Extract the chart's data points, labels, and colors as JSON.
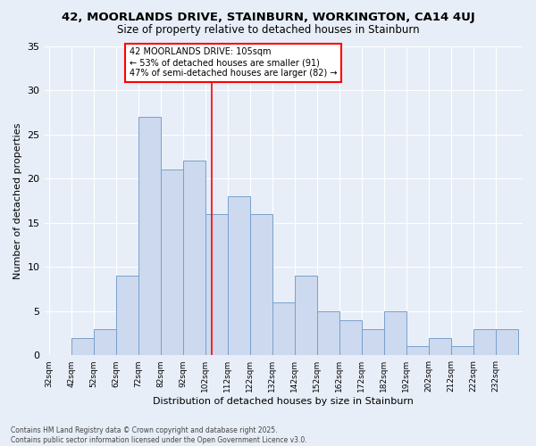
{
  "title": "42, MOORLANDS DRIVE, STAINBURN, WORKINGTON, CA14 4UJ",
  "subtitle": "Size of property relative to detached houses in Stainburn",
  "xlabel": "Distribution of detached houses by size in Stainburn",
  "ylabel": "Number of detached properties",
  "footer_line1": "Contains HM Land Registry data © Crown copyright and database right 2025.",
  "footer_line2": "Contains public sector information licensed under the Open Government Licence v3.0.",
  "annotation_title": "42 MOORLANDS DRIVE: 105sqm",
  "annotation_line2": "← 53% of detached houses are smaller (91)",
  "annotation_line3": "47% of semi-detached houses are larger (82) →",
  "bins_left": [
    32,
    42,
    52,
    62,
    72,
    82,
    92,
    102,
    112,
    122,
    132,
    142,
    152,
    162,
    172,
    182,
    192,
    202,
    212,
    222,
    232
  ],
  "counts": [
    0,
    2,
    3,
    9,
    27,
    21,
    22,
    16,
    18,
    16,
    6,
    9,
    5,
    4,
    3,
    5,
    1,
    2,
    1,
    3,
    3
  ],
  "bar_color": "#ccd9ee",
  "bar_edge_color": "#7aa0cc",
  "ref_line_x": 105,
  "ref_line_color": "red",
  "bg_color": "#e8eef8",
  "plot_bg_color": "#e8eef8",
  "grid_color": "#ffffff",
  "ylim": [
    0,
    35
  ],
  "yticks": [
    0,
    5,
    10,
    15,
    20,
    25,
    30,
    35
  ],
  "bin_width": 10
}
